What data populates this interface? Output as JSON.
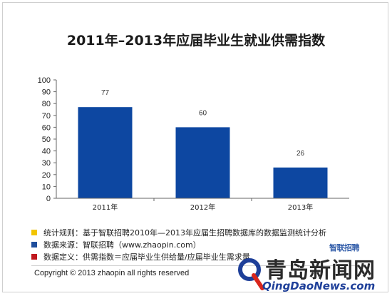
{
  "chart_data": {
    "type": "bar",
    "title": "2011年–2013年应届毕业生就业供需指数",
    "categories": [
      "2011年",
      "2012年",
      "2013年"
    ],
    "values": [
      77,
      60,
      26
    ],
    "data_labels": [
      "77",
      "60",
      "26"
    ],
    "ylim": [
      0,
      100
    ],
    "yticks": [
      0,
      10,
      20,
      30,
      40,
      50,
      60,
      70,
      80,
      90,
      100
    ],
    "grid": false,
    "bar_color": "#0d47a1"
  },
  "notes": [
    {
      "color": "#f2c500",
      "text": "统计规则：基于智联招聘2010年—2013年应届生招聘数据库的数据监测统计分析"
    },
    {
      "color": "#1f4e9c",
      "text": "数据来源：智联招聘（www.zhaopin.com）"
    },
    {
      "color": "#c0181f",
      "text": "数据定义：供需指数＝应届毕业生供给量/应届毕业生需求量"
    }
  ],
  "copyright": "Copyright © 2013 zhaopin all rights reserved",
  "logo_text": "智联招聘",
  "watermark": {
    "name": "青岛新闻网",
    "url": "QingDaoNews.com"
  }
}
